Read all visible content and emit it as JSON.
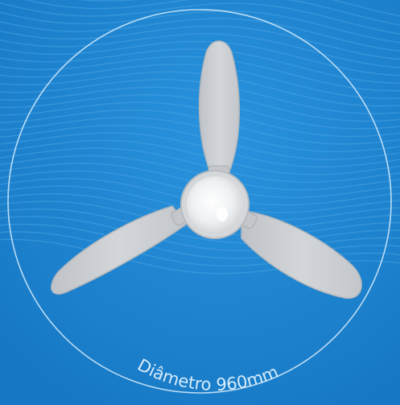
{
  "image": {
    "background_color": "#1b86d3",
    "wave_line_color": "#4aa3e2",
    "ring_color": "#d6ecfb",
    "blade_color": "#c9cdd0",
    "blade_edge_color": "#b2b6ba",
    "hub_color": "#f1f3f4",
    "hub_ring_color": "#b8bcc0"
  },
  "caption": {
    "text": "Diâmetro 960mm",
    "color": "#d6ecfb"
  }
}
